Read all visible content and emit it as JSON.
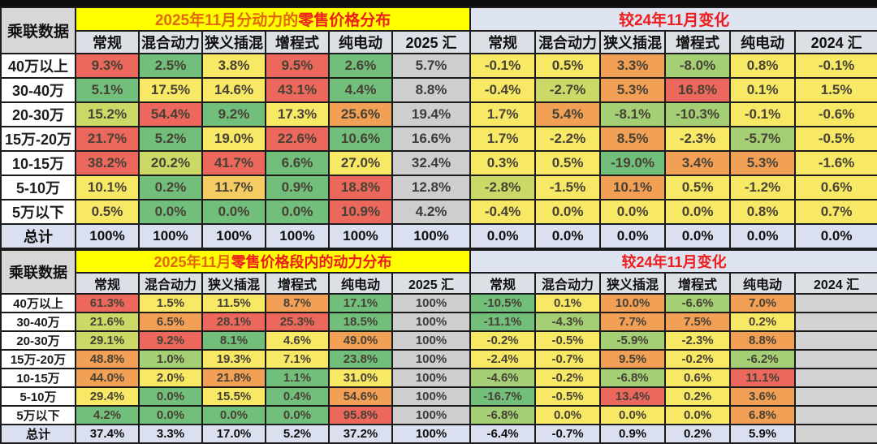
{
  "palette": {
    "red": "#ec685c",
    "orange": "#f2a055",
    "yellow_orange": "#f5cc62",
    "yellow": "#f7e966",
    "yellow_green": "#ccd966",
    "light_green": "#a4cf75",
    "green": "#71bf7b",
    "gray_sum": "#cecece",
    "total_row": "#dbe0f1",
    "title_yellow": "#ffff00",
    "title_blue_gray": "#dde3ef",
    "title_orange_text": "#e2680a",
    "title_red_text": "#ee1c1c"
  },
  "chart_data": [
    {
      "type": "table",
      "source_label": "乘联数据",
      "title": "2025年11月分动力的零售价格分布",
      "title_part1": "2025年11月分动力的",
      "title_part2": "零售价格分布",
      "change_title": "较24年11月变化",
      "columns": [
        "常规",
        "混合动力",
        "狭义插混",
        "增程式",
        "纯电动",
        "2025 汇",
        "常规",
        "混合动力",
        "狭义插混",
        "增程式",
        "纯电动",
        "2024 汇"
      ],
      "rows": [
        {
          "label": "40万以上",
          "values": [
            "9.3%",
            "2.5%",
            "3.8%",
            "9.5%",
            "2.6%",
            "5.7%",
            "-0.1%",
            "0.5%",
            "3.3%",
            "-8.0%",
            "0.8%",
            "-0.1%"
          ],
          "colors": [
            "r",
            "g",
            "y",
            "r",
            "g",
            "gr",
            "y",
            "y",
            "o",
            "lg",
            "y",
            "y"
          ]
        },
        {
          "label": "30-40万",
          "values": [
            "5.1%",
            "17.5%",
            "14.6%",
            "43.1%",
            "4.4%",
            "8.8%",
            "-0.4%",
            "-2.7%",
            "5.3%",
            "16.8%",
            "0.1%",
            "1.5%"
          ],
          "colors": [
            "g",
            "y",
            "y",
            "r",
            "g",
            "gr",
            "y",
            "yg",
            "o",
            "r",
            "y",
            "y"
          ]
        },
        {
          "label": "20-30万",
          "values": [
            "15.2%",
            "54.4%",
            "9.2%",
            "17.3%",
            "25.6%",
            "19.4%",
            "1.7%",
            "5.4%",
            "-8.1%",
            "-10.3%",
            "-0.1%",
            "-0.6%"
          ],
          "colors": [
            "yg",
            "r",
            "g",
            "y",
            "o",
            "gr",
            "y",
            "o",
            "lg",
            "lg",
            "y",
            "y"
          ]
        },
        {
          "label": "15万-20万",
          "values": [
            "21.7%",
            "5.2%",
            "19.0%",
            "22.6%",
            "10.6%",
            "16.6%",
            "1.7%",
            "-2.2%",
            "8.5%",
            "-2.3%",
            "-5.7%",
            "-0.5%"
          ],
          "colors": [
            "r",
            "g",
            "y",
            "r",
            "g",
            "gr",
            "y",
            "y",
            "o",
            "y",
            "lg",
            "y"
          ]
        },
        {
          "label": "10-15万",
          "values": [
            "38.2%",
            "20.2%",
            "41.7%",
            "6.6%",
            "27.0%",
            "32.4%",
            "0.3%",
            "0.5%",
            "-19.0%",
            "3.4%",
            "5.3%",
            "-1.6%"
          ],
          "colors": [
            "r",
            "yg",
            "r",
            "g",
            "y",
            "gr",
            "y",
            "y",
            "g",
            "o",
            "o",
            "y"
          ]
        },
        {
          "label": "5-10万",
          "values": [
            "10.1%",
            "0.2%",
            "11.7%",
            "0.9%",
            "18.8%",
            "12.8%",
            "-2.8%",
            "-1.5%",
            "10.1%",
            "0.5%",
            "-1.2%",
            "0.6%"
          ],
          "colors": [
            "y",
            "g",
            "yo",
            "g",
            "r",
            "gr",
            "yg",
            "y",
            "o",
            "y",
            "y",
            "y"
          ]
        },
        {
          "label": "5万以下",
          "values": [
            "0.5%",
            "0.0%",
            "0.0%",
            "0.0%",
            "10.9%",
            "4.2%",
            "-0.4%",
            "0.0%",
            "0.0%",
            "0.0%",
            "0.8%",
            "0.7%"
          ],
          "colors": [
            "y",
            "g",
            "g",
            "g",
            "r",
            "gr",
            "y",
            "y",
            "y",
            "y",
            "y",
            "y"
          ]
        },
        {
          "label": "总计",
          "is_total": true,
          "values": [
            "100%",
            "100%",
            "100%",
            "100%",
            "100%",
            "100%",
            "0.0%",
            "0.0%",
            "0.0%",
            "0.0%",
            "0.0%",
            "0.0%"
          ],
          "colors": [
            "tot",
            "tot",
            "tot",
            "tot",
            "tot",
            "tot",
            "tot",
            "tot",
            "tot",
            "tot",
            "tot",
            "tot"
          ]
        }
      ]
    },
    {
      "type": "table",
      "source_label": "乘联数据",
      "title": "2025年11月零售价格段内的动力分布",
      "title_part1": "2025年11月",
      "title_part2": "零售价格段内的动力分布",
      "change_title": "较24年11月变化",
      "columns": [
        "常规",
        "混合动力",
        "狭义插混",
        "增程式",
        "纯电动",
        "2025 汇",
        "常规",
        "混合动力",
        "狭义插混",
        "增程式",
        "纯电动",
        "2024 汇"
      ],
      "rows": [
        {
          "label": "40万以上",
          "values": [
            "61.3%",
            "1.5%",
            "11.5%",
            "8.7%",
            "17.1%",
            "100%",
            "-10.5%",
            "0.1%",
            "10.0%",
            "-6.6%",
            "7.0%",
            ""
          ],
          "colors": [
            "r",
            "y",
            "y",
            "o",
            "g",
            "gr",
            "g",
            "y",
            "o",
            "lg",
            "o",
            "emp"
          ]
        },
        {
          "label": "30-40万",
          "values": [
            "21.6%",
            "6.5%",
            "28.1%",
            "25.3%",
            "18.5%",
            "100%",
            "-11.1%",
            "-4.3%",
            "7.7%",
            "7.5%",
            "0.2%",
            ""
          ],
          "colors": [
            "yg",
            "o",
            "r",
            "r",
            "g",
            "gr",
            "g",
            "lg",
            "o",
            "o",
            "y",
            "emp"
          ]
        },
        {
          "label": "20-30万",
          "values": [
            "29.1%",
            "9.2%",
            "8.1%",
            "4.6%",
            "49.0%",
            "100%",
            "-0.2%",
            "-0.5%",
            "-5.9%",
            "-2.3%",
            "8.8%",
            ""
          ],
          "colors": [
            "yg",
            "r",
            "g",
            "y",
            "o",
            "gr",
            "y",
            "y",
            "lg",
            "y",
            "o",
            "emp"
          ]
        },
        {
          "label": "15万-20万",
          "values": [
            "48.8%",
            "1.0%",
            "19.3%",
            "7.1%",
            "23.8%",
            "100%",
            "-2.4%",
            "-0.7%",
            "9.5%",
            "-0.2%",
            "-6.2%",
            ""
          ],
          "colors": [
            "o",
            "lg",
            "y",
            "y",
            "g",
            "gr",
            "y",
            "y",
            "o",
            "y",
            "lg",
            "emp"
          ]
        },
        {
          "label": "10-15万",
          "values": [
            "44.0%",
            "2.0%",
            "21.8%",
            "1.1%",
            "31.0%",
            "100%",
            "-4.6%",
            "-0.2%",
            "-6.8%",
            "0.6%",
            "11.1%",
            ""
          ],
          "colors": [
            "o",
            "y",
            "o",
            "g",
            "y",
            "gr",
            "lg",
            "y",
            "lg",
            "y",
            "r",
            "emp"
          ]
        },
        {
          "label": "5-10万",
          "values": [
            "29.4%",
            "0.0%",
            "15.5%",
            "0.4%",
            "54.6%",
            "100%",
            "-16.7%",
            "-0.5%",
            "13.4%",
            "0.2%",
            "3.6%",
            ""
          ],
          "colors": [
            "y",
            "g",
            "y",
            "g",
            "o",
            "gr",
            "g",
            "y",
            "r",
            "y",
            "o",
            "emp"
          ]
        },
        {
          "label": "5万以下",
          "values": [
            "4.2%",
            "0.0%",
            "0.0%",
            "0.0%",
            "95.8%",
            "100%",
            "-6.8%",
            "0.0%",
            "0.0%",
            "0.0%",
            "6.8%",
            ""
          ],
          "colors": [
            "g",
            "g",
            "g",
            "g",
            "r",
            "gr",
            "lg",
            "y",
            "y",
            "y",
            "o",
            "emp"
          ]
        },
        {
          "label": "总计",
          "is_total": true,
          "values": [
            "37.4%",
            "3.3%",
            "17.0%",
            "5.2%",
            "37.2%",
            "100%",
            "-6.4%",
            "-0.7%",
            "0.9%",
            "0.2%",
            "5.9%",
            ""
          ],
          "colors": [
            "tot",
            "tot",
            "tot",
            "tot",
            "tot",
            "tot",
            "tot",
            "tot",
            "tot",
            "tot",
            "tot",
            "emp"
          ]
        }
      ]
    }
  ]
}
